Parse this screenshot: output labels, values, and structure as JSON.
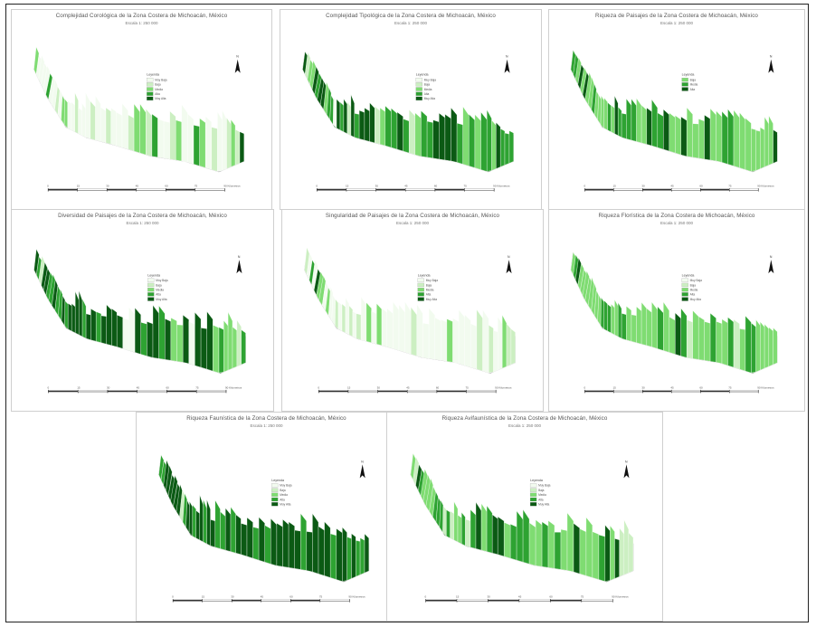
{
  "colors": {
    "v1": "#f2fbef",
    "v2": "#ccefc2",
    "v3": "#7fdc72",
    "v4": "#2ea332",
    "v5": "#0b5a14",
    "border": "#cfcfcf"
  },
  "panels": [
    {
      "title": "Complejidad Corológica de la Zona Costera de Michoacán, México",
      "scale": "Escala 1: 250 000",
      "legend": {
        "title": "Leyenda",
        "items": [
          "Muy Baja",
          "Baja",
          "Media",
          "Alta",
          "Muy Alta"
        ]
      },
      "color_weights": [
        0.52,
        0.28,
        0.12,
        0.06,
        0.02
      ],
      "scale_labels": [
        "0",
        "15",
        "30",
        "45",
        "60",
        "75",
        "90 Kilometros"
      ]
    },
    {
      "title": "Complejidad Tipológica de la Zona Costera de Michoacán, México",
      "scale": "Escala 1: 250 000",
      "legend": {
        "title": "Leyenda",
        "items": [
          "Muy Baja",
          "Baja",
          "Media",
          "Alta",
          "Muy Alta"
        ]
      },
      "color_weights": [
        0.03,
        0.07,
        0.2,
        0.3,
        0.4
      ],
      "scale_labels": [
        "0",
        "15",
        "30",
        "45",
        "60",
        "75",
        "90 Kilometros"
      ]
    },
    {
      "title": "Riqueza de Paisajes de la Zona Costera de Michoacán, México",
      "scale": "Escala 1: 250 000",
      "legend": {
        "title": "Leyenda",
        "items": [
          "Baja",
          "Media",
          "Alta"
        ]
      },
      "color_weights": [
        0,
        0,
        0.55,
        0.3,
        0.15
      ],
      "scale_labels": [
        "0",
        "15",
        "30",
        "45",
        "60",
        "75",
        "90 Kilometros"
      ]
    },
    {
      "title": "Diversidad de Paisajes de la Zona Costera de Michoacán, México",
      "scale": "Escala 1: 250 000",
      "legend": {
        "title": "Leyenda",
        "items": [
          "Muy Baja",
          "Baja",
          "Media",
          "Alta",
          "Muy Alta"
        ]
      },
      "color_weights": [
        0.02,
        0.06,
        0.14,
        0.3,
        0.48
      ],
      "scale_labels": [
        "0",
        "15",
        "30",
        "45",
        "60",
        "75",
        "90 Kilometros"
      ]
    },
    {
      "title": "Singularidad de Paisajes de la Zona Costera de Michoacán, México",
      "scale": "Escala 1: 250 000",
      "legend": {
        "title": "Leyenda",
        "items": [
          "Muy Baja",
          "Baja",
          "Media",
          "Alta",
          "Muy Alta"
        ]
      },
      "color_weights": [
        0.55,
        0.27,
        0.12,
        0.05,
        0.01
      ],
      "scale_labels": [
        "0",
        "15",
        "30",
        "45",
        "60",
        "75",
        "90 Kilometros"
      ]
    },
    {
      "title": "Riqueza Florística de la Zona Costera de Michoacán, México",
      "scale": "Escala 1: 250 000",
      "legend": {
        "title": "Leyenda",
        "items": [
          "Muy Baja",
          "Baja",
          "Media",
          "Alta",
          "Muy Alta"
        ]
      },
      "color_weights": [
        0.02,
        0.08,
        0.5,
        0.3,
        0.1
      ],
      "scale_labels": [
        "0",
        "15",
        "30",
        "45",
        "60",
        "75",
        "90 Kilometros"
      ]
    },
    {
      "title": "Riqueza Faunística de la Zona Costera de Michoacán, México",
      "scale": "Escala 1: 250 000",
      "legend": {
        "title": "Leyenda",
        "items": [
          "Muy Baja",
          "Baja",
          "Media",
          "Alta",
          "Muy Alta"
        ]
      },
      "color_weights": [
        0.01,
        0.03,
        0.1,
        0.3,
        0.56
      ],
      "scale_labels": [
        "0",
        "15",
        "30",
        "45",
        "60",
        "75",
        "90 Kilometros"
      ]
    },
    {
      "title": "Riqueza Avifaunística de la Zona Costera de Michoacán, México",
      "scale": "Escala 1: 250 000",
      "legend": {
        "title": "Leyenda",
        "items": [
          "Muy Baja",
          "Baja",
          "Media",
          "Alta",
          "Muy Alta"
        ]
      },
      "color_weights": [
        0.03,
        0.1,
        0.27,
        0.35,
        0.25
      ],
      "scale_labels": [
        "0",
        "15",
        "30",
        "45",
        "60",
        "75",
        "90 Kilometros"
      ]
    }
  ]
}
